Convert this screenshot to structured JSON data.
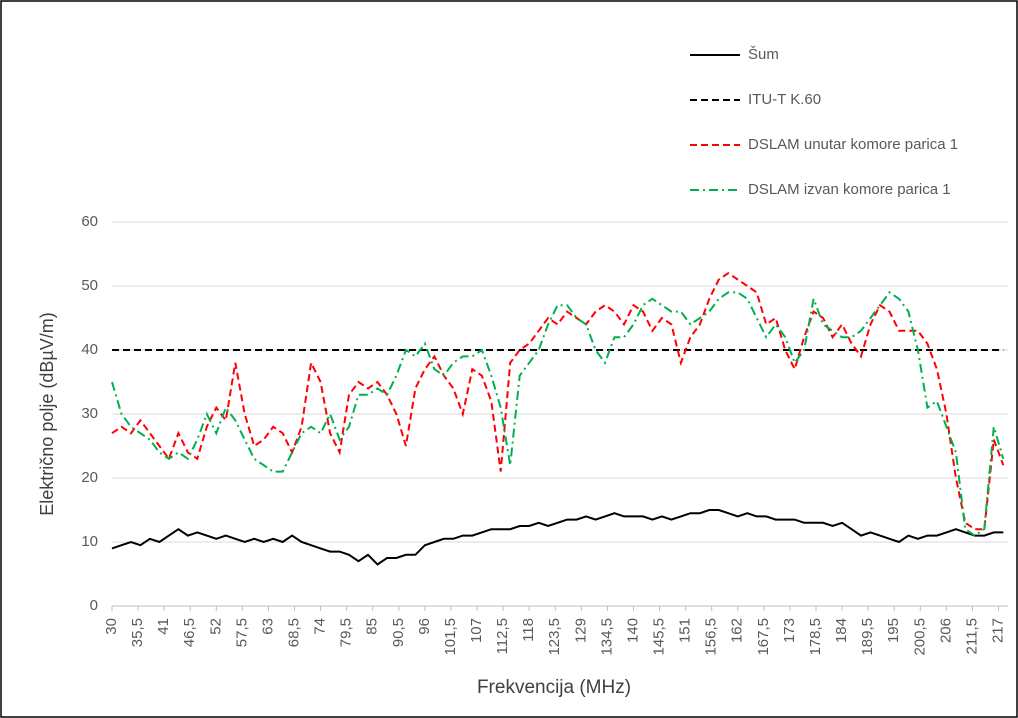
{
  "chart_data": {
    "type": "line",
    "xlabel": "Frekvencija (MHz)",
    "ylabel": "Električno polje (dBµV/m)",
    "x": [
      30,
      32,
      34,
      36,
      38,
      40,
      42,
      44,
      46,
      48,
      50,
      52,
      54,
      56,
      58,
      60,
      62,
      64,
      66,
      68,
      70,
      72,
      74,
      76,
      78,
      80,
      82,
      84,
      86,
      88,
      90,
      92,
      94,
      96,
      98,
      100,
      102,
      104,
      106,
      108,
      110,
      112,
      114,
      116,
      118,
      120,
      122,
      124,
      126,
      128,
      130,
      132,
      134,
      136,
      138,
      140,
      142,
      144,
      146,
      148,
      150,
      152,
      154,
      156,
      158,
      160,
      162,
      164,
      166,
      168,
      170,
      172,
      174,
      176,
      178,
      180,
      182,
      184,
      186,
      188,
      190,
      192,
      194,
      196,
      198,
      200,
      202,
      204,
      206,
      208,
      210,
      212,
      214,
      216,
      218
    ],
    "series": [
      {
        "name": "Šum",
        "color": "#000000",
        "dash": "solid",
        "values": [
          9,
          9.5,
          10,
          9.5,
          10.5,
          10,
          11,
          12,
          11,
          11.5,
          11,
          10.5,
          11,
          10.5,
          10,
          10.5,
          10,
          10.5,
          10,
          11,
          10,
          9.5,
          9,
          8.5,
          8.5,
          8,
          7,
          8,
          6.5,
          7.5,
          7.5,
          8,
          8,
          9.5,
          10,
          10.5,
          10.5,
          11,
          11,
          11.5,
          12,
          12,
          12,
          12.5,
          12.5,
          13,
          12.5,
          13,
          13.5,
          13.5,
          14,
          13.5,
          14,
          14.5,
          14,
          14,
          14,
          13.5,
          14,
          13.5,
          14,
          14.5,
          14.5,
          15,
          15,
          14.5,
          14,
          14.5,
          14,
          14,
          13.5,
          13.5,
          13.5,
          13,
          13,
          13,
          12.5,
          13,
          12,
          11,
          11.5,
          11,
          10.5,
          10,
          11,
          10.5,
          11,
          11,
          11.5,
          12,
          11.5,
          11,
          11,
          11.5,
          11.5
        ]
      },
      {
        "name": "ITU-T K.60",
        "color": "#000000",
        "dash": "dashed",
        "values": [
          40,
          40,
          40,
          40,
          40,
          40,
          40,
          40,
          40,
          40,
          40,
          40,
          40,
          40,
          40,
          40,
          40,
          40,
          40,
          40,
          40,
          40,
          40,
          40,
          40,
          40,
          40,
          40,
          40,
          40,
          40,
          40,
          40,
          40,
          40,
          40,
          40,
          40,
          40,
          40,
          40,
          40,
          40,
          40,
          40,
          40,
          40,
          40,
          40,
          40,
          40,
          40,
          40,
          40,
          40,
          40,
          40,
          40,
          40,
          40,
          40,
          40,
          40,
          40,
          40,
          40,
          40,
          40,
          40,
          40,
          40,
          40,
          40,
          40,
          40,
          40,
          40,
          40,
          40,
          40,
          40,
          40,
          40,
          40,
          40,
          40,
          40,
          40,
          40,
          40,
          40,
          40,
          40,
          40,
          40
        ]
      },
      {
        "name": "DSLAM unutar komore parica 1",
        "color": "#ff0000",
        "dash": "dashed",
        "values": [
          27,
          28,
          27,
          29,
          27,
          25,
          23,
          27,
          24,
          23,
          28,
          31,
          29,
          38,
          30,
          25,
          26,
          28,
          27,
          24,
          28,
          38,
          35,
          27,
          24,
          33,
          35,
          34,
          35,
          33,
          30,
          25,
          34,
          37,
          39,
          36,
          34,
          30,
          37,
          36,
          32,
          21,
          38,
          40,
          41,
          43,
          45,
          44,
          46,
          45,
          44,
          46,
          47,
          46,
          44,
          47,
          46,
          43,
          45,
          44,
          38,
          42,
          44,
          48,
          51,
          52,
          51,
          50,
          49,
          44,
          45,
          40,
          37,
          42,
          46,
          45,
          42,
          44,
          41,
          39,
          44,
          47,
          46,
          43,
          43,
          43,
          41,
          37,
          30,
          20,
          13,
          12,
          12,
          26,
          22
        ]
      },
      {
        "name": "DSLAM izvan komore parica 1",
        "color": "#00b050",
        "dash": "dashdot",
        "values": [
          35,
          30,
          28,
          27,
          26,
          24,
          23,
          24,
          23,
          26,
          30,
          27,
          31,
          29,
          26,
          23,
          22,
          21,
          21,
          24,
          27,
          28,
          27,
          30,
          26,
          28,
          33,
          33,
          34,
          33,
          36,
          40,
          39,
          41,
          37,
          36,
          38,
          39,
          39,
          40,
          36,
          31,
          22,
          36,
          38,
          40,
          44,
          47,
          47,
          45,
          44,
          40,
          38,
          42,
          42,
          44,
          47,
          48,
          47,
          46,
          46,
          44,
          45,
          46,
          48,
          49,
          49,
          48,
          45,
          42,
          44,
          42,
          38,
          40,
          48,
          44,
          43,
          42,
          42,
          43,
          45,
          47,
          49,
          48,
          46,
          40,
          31,
          32,
          28,
          24,
          12,
          11,
          12,
          28,
          23
        ]
      }
    ],
    "xlim": [
      30,
      219
    ],
    "xticks": [
      30,
      {
        "value": 35.5,
        "label": "35,5"
      },
      41,
      {
        "value": 46.5,
        "label": "46,5"
      },
      52,
      {
        "value": 57.5,
        "label": "57,5"
      },
      63,
      {
        "value": 68.5,
        "label": "68,5"
      },
      74,
      {
        "value": 79.5,
        "label": "79,5"
      },
      85,
      {
        "value": 90.5,
        "label": "90,5"
      },
      96,
      {
        "value": 101.5,
        "label": "101,5"
      },
      107,
      {
        "value": 112.5,
        "label": "112,5"
      },
      118,
      {
        "value": 123.5,
        "label": "123,5"
      },
      129,
      {
        "value": 134.5,
        "label": "134,5"
      },
      140,
      {
        "value": 145.5,
        "label": "145,5"
      },
      151,
      {
        "value": 156.5,
        "label": "156,5"
      },
      162,
      {
        "value": 167.5,
        "label": "167,5"
      },
      173,
      {
        "value": 178.5,
        "label": "178,5"
      },
      184,
      {
        "value": 189.5,
        "label": "189,5"
      },
      195,
      {
        "value": 200.5,
        "label": "200,5"
      },
      206,
      {
        "value": 211.5,
        "label": "211,5"
      },
      217
    ],
    "ylim": [
      0,
      60
    ],
    "yticks": [
      0,
      10,
      20,
      30,
      40,
      50,
      60
    ],
    "grid": true,
    "legend": "top-right"
  }
}
